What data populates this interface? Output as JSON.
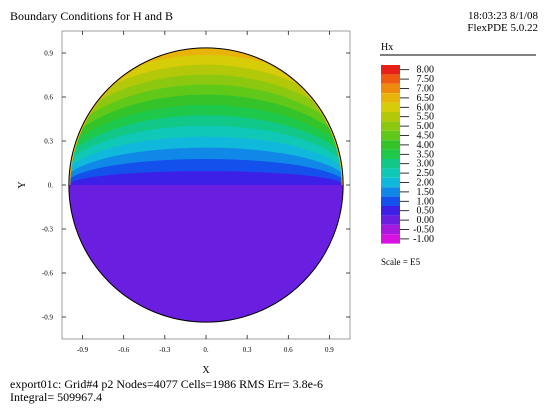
{
  "header": {
    "title": "Boundary Conditions for H and B",
    "timestamp": "18:03:23 8/1/08",
    "version": "FlexPDE 5.0.22"
  },
  "footer": {
    "line1": "export01c:  Grid#4  p2  Nodes=4077 Cells=1986 RMS Err= 3.8e-6",
    "line2": "Integral=  509967.4"
  },
  "legend": {
    "title": "Hx",
    "scale": "Scale = E5",
    "levels": [
      {
        "label": "8.00",
        "color": "#e8201a"
      },
      {
        "label": "7.50",
        "color": "#ee5a12"
      },
      {
        "label": "7.00",
        "color": "#f08a0c"
      },
      {
        "label": "6.50",
        "color": "#e8b40a"
      },
      {
        "label": "6.00",
        "color": "#d6cc08"
      },
      {
        "label": "5.50",
        "color": "#b4c80a"
      },
      {
        "label": "5.00",
        "color": "#8cc810"
      },
      {
        "label": "4.50",
        "color": "#60c818"
      },
      {
        "label": "4.00",
        "color": "#34c42a"
      },
      {
        "label": "3.50",
        "color": "#1ec84a"
      },
      {
        "label": "3.00",
        "color": "#12c888"
      },
      {
        "label": "2.50",
        "color": "#10c8b8"
      },
      {
        "label": "2.00",
        "color": "#10b8dc"
      },
      {
        "label": "1.50",
        "color": "#1088e8"
      },
      {
        "label": "1.00",
        "color": "#1450ec"
      },
      {
        "label": "0.50",
        "color": "#3c20e8"
      },
      {
        "label": "0.00",
        "color": "#6a1ee0"
      },
      {
        "label": "-0.50",
        "color": "#a818e0"
      },
      {
        "label": "-1.00",
        "color": "#d810e0"
      }
    ]
  },
  "chart_data": {
    "type": "contour",
    "xlabel": "X",
    "ylabel": "Y",
    "xlim": [
      -1.05,
      1.05
    ],
    "ylim": [
      -1.05,
      1.05
    ],
    "xticks": [
      -0.9,
      -0.6,
      -0.3,
      0,
      0.3,
      0.6,
      0.9
    ],
    "xtick_labels": [
      "-0.9",
      "-0.6",
      "-0.3",
      "0.",
      "0.3",
      "0.6",
      "0.9"
    ],
    "yticks": [
      0.9,
      0.6,
      0.3,
      0,
      -0.3,
      -0.6,
      -0.9
    ],
    "ytick_labels": [
      "0.9",
      "0.6",
      "0.3",
      "0.",
      "-0.3",
      "-0.6",
      "-0.9"
    ],
    "domain": "unit circle",
    "lower_half_value": 0.25,
    "upper_half_bands": [
      {
        "level": 0.5,
        "color": "#3c20e8"
      },
      {
        "level": 1.0,
        "color": "#1450ec"
      },
      {
        "level": 1.5,
        "color": "#1088e8"
      },
      {
        "level": 2.0,
        "color": "#10b8dc"
      },
      {
        "level": 2.5,
        "color": "#10c8b8"
      },
      {
        "level": 3.0,
        "color": "#12c888"
      },
      {
        "level": 3.5,
        "color": "#1ec84a"
      },
      {
        "level": 4.0,
        "color": "#34c42a"
      },
      {
        "level": 4.5,
        "color": "#60c818"
      },
      {
        "level": 5.0,
        "color": "#8cc810"
      },
      {
        "level": 5.5,
        "color": "#b4c80a"
      },
      {
        "level": 6.0,
        "color": "#d6cc08"
      },
      {
        "level": 6.5,
        "color": "#e8b40a"
      }
    ]
  }
}
